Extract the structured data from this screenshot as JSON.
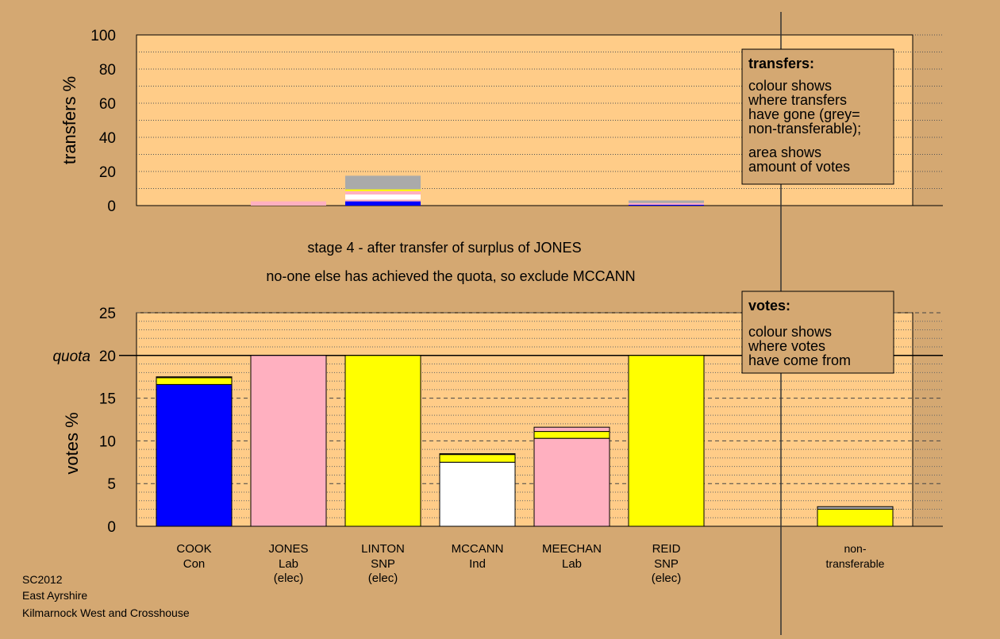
{
  "colors": {
    "background": "#d4a872",
    "plot": "#ffcc88",
    "Con": "#0000ff",
    "Lab": "#ffb0c0",
    "SNP": "#ffff00",
    "Ind": "#ffffff",
    "nontransferable": "#aaaaaa"
  },
  "stage_title": "stage 4 - after transfer of surplus of JONES",
  "stage_subtitle": "no-one else has achieved the quota, so exclude MCCANN",
  "footer": [
    "SC2012",
    "East Ayrshire",
    "Kilmarnock West and Crosshouse"
  ],
  "chart_data": [
    {
      "type": "bar",
      "stacked": true,
      "ylabel": "transfers %",
      "ylim": [
        0,
        100
      ],
      "yticks": [
        0,
        20,
        40,
        60,
        80,
        100
      ],
      "grid": true,
      "legend": {
        "position": "top-right",
        "title": "transfers:",
        "lines": [
          "colour shows",
          "where transfers",
          "have gone (grey=",
          "non-transferable);",
          "area shows",
          "amount of votes"
        ]
      },
      "categories": [
        "COOK",
        "JONES",
        "LINTON",
        "MCCANN",
        "MEECHAN",
        "REID",
        "",
        "non-transferable"
      ],
      "bars": [
        {
          "category": "COOK",
          "segments": []
        },
        {
          "category": "JONES",
          "segments": [
            {
              "from": "Lab",
              "value": 2.5
            }
          ]
        },
        {
          "category": "LINTON",
          "segments": [
            {
              "to": "Con",
              "value": 2.5
            },
            {
              "to": "Lab",
              "value": 1.0
            },
            {
              "to": "Ind",
              "value": 3.0
            },
            {
              "to": "Lab",
              "value": 2.0
            },
            {
              "to": "SNP",
              "value": 1.0
            },
            {
              "to": "non-transferable",
              "value": 8.0
            }
          ]
        },
        {
          "category": "MCCANN",
          "segments": []
        },
        {
          "category": "MEECHAN",
          "segments": []
        },
        {
          "category": "REID",
          "segments": [
            {
              "to": "Con",
              "value": 0.5
            },
            {
              "to": "Lab",
              "value": 1.0
            },
            {
              "to": "non-transferable",
              "value": 1.5
            }
          ]
        }
      ]
    },
    {
      "type": "bar",
      "stacked": true,
      "ylabel": "votes %",
      "ylim": [
        0,
        25
      ],
      "yticks": [
        0,
        5,
        10,
        15,
        20,
        25
      ],
      "quota": 20,
      "quota_label": "quota",
      "grid": true,
      "legend": {
        "position": "top-right",
        "title": "votes:",
        "lines": [
          "colour shows",
          "where votes",
          "have come from"
        ]
      },
      "candidates": [
        {
          "name": "COOK",
          "party": "Con",
          "status": "",
          "segments": [
            {
              "from": "Con",
              "value": 16.6
            },
            {
              "from": "SNP",
              "value": 0.8
            },
            {
              "from": "Lab",
              "value": 0.1
            }
          ]
        },
        {
          "name": "JONES",
          "party": "Lab",
          "status": "(elec)",
          "segments": [
            {
              "from": "Lab",
              "value": 20.0
            }
          ]
        },
        {
          "name": "LINTON",
          "party": "SNP",
          "status": "(elec)",
          "segments": [
            {
              "from": "SNP",
              "value": 20.0
            }
          ]
        },
        {
          "name": "MCCANN",
          "party": "Ind",
          "status": "",
          "segments": [
            {
              "from": "Ind",
              "value": 7.5
            },
            {
              "from": "SNP",
              "value": 0.9
            },
            {
              "from": "Lab",
              "value": 0.1
            }
          ]
        },
        {
          "name": "MEECHAN",
          "party": "Lab",
          "status": "",
          "segments": [
            {
              "from": "Lab",
              "value": 10.3
            },
            {
              "from": "SNP",
              "value": 0.8
            },
            {
              "from": "Lab",
              "value": 0.5
            }
          ]
        },
        {
          "name": "REID",
          "party": "SNP",
          "status": "(elec)",
          "segments": [
            {
              "from": "SNP",
              "value": 20.0
            }
          ]
        },
        {
          "name": "",
          "party": "",
          "status": "",
          "segments": []
        },
        {
          "name": "non-",
          "party": "transferable",
          "status": "",
          "segments": [
            {
              "from": "SNP",
              "value": 2.0
            },
            {
              "from": "nontransferable",
              "value": 0.3
            }
          ]
        }
      ]
    }
  ]
}
